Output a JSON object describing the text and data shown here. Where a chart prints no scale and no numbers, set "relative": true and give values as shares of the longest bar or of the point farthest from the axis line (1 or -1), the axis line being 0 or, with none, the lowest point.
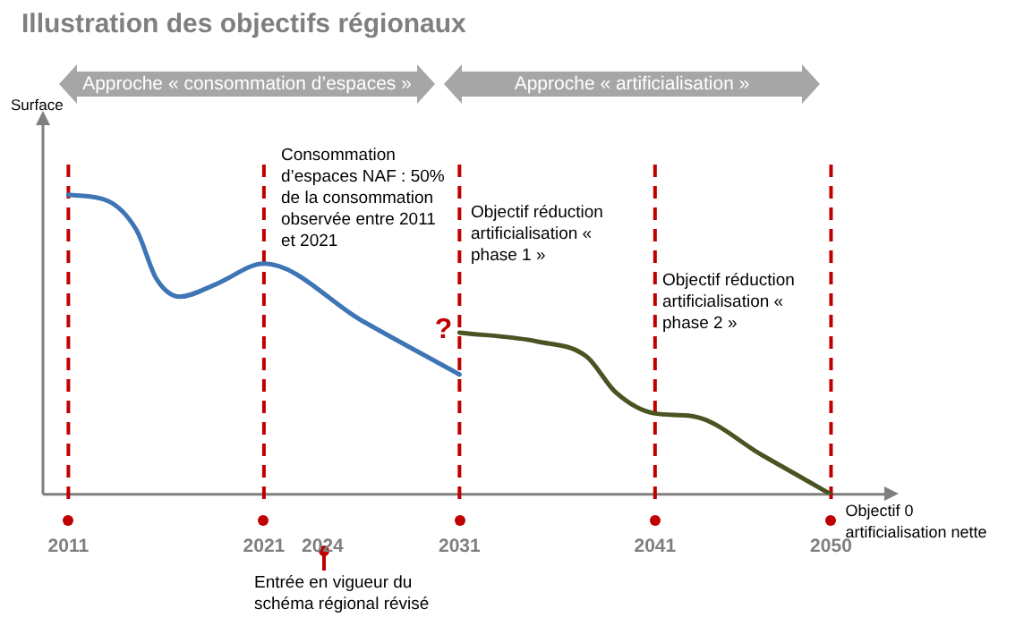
{
  "chart_data": {
    "type": "line",
    "title": "Illustration des objectifs régionaux",
    "relative": true,
    "xlim": [
      2009.7,
      2053
    ],
    "xticks": [
      2011,
      2021,
      2024,
      2031,
      2041,
      2050
    ],
    "series": [
      {
        "color": "#3e75b4",
        "x": [
          2011,
          2013,
          2014.5,
          2015.5,
          2016.7,
          2018.5,
          2021,
          2026,
          2031
        ],
        "values": [
          1.0,
          0.98,
          0.88,
          0.72,
          0.66,
          0.7,
          0.77,
          0.58,
          0.4
        ]
      },
      {
        "color": "#4a5422",
        "x": [
          2031,
          2035,
          2037.5,
          2039,
          2041,
          2043,
          2046.5,
          2050
        ],
        "values": [
          0.54,
          0.51,
          0.46,
          0.34,
          0.27,
          0.26,
          0.13,
          0
        ]
      }
    ],
    "ref_lines": [
      {
        "axis": "x",
        "value": 2011,
        "color": "#c00000",
        "line_style": "dashed"
      },
      {
        "axis": "x",
        "value": 2021,
        "color": "#c00000",
        "line_style": "dashed"
      },
      {
        "axis": "x",
        "value": 2031,
        "color": "#c00000",
        "line_style": "dashed"
      },
      {
        "axis": "x",
        "value": 2041,
        "color": "#c00000",
        "line_style": "dashed"
      },
      {
        "axis": "x",
        "value": 2050,
        "color": "#c00000",
        "line_style": "dashed"
      }
    ],
    "annotations": [
      "Approche « consommation d’espaces »",
      "Approche « artificialisation »",
      "Consommation d’espaces NAF : 50% de la consommation observée entre 2011 et 2021",
      "Objectif réduction artificialisation « phase 1 »",
      "Objectif réduction artificialisation « phase 2 »",
      "Entrée en vigueur du schéma régional révisé",
      "Surface",
      {
        "text": "?",
        "x": 2031,
        "y": 0.5
      },
      {
        "text": "Objectif 0 artificialisation nette",
        "x": 2050,
        "y": 0
      }
    ],
    "grid": false,
    "legend": false,
    "marker": "none",
    "line_style": "solid"
  }
}
